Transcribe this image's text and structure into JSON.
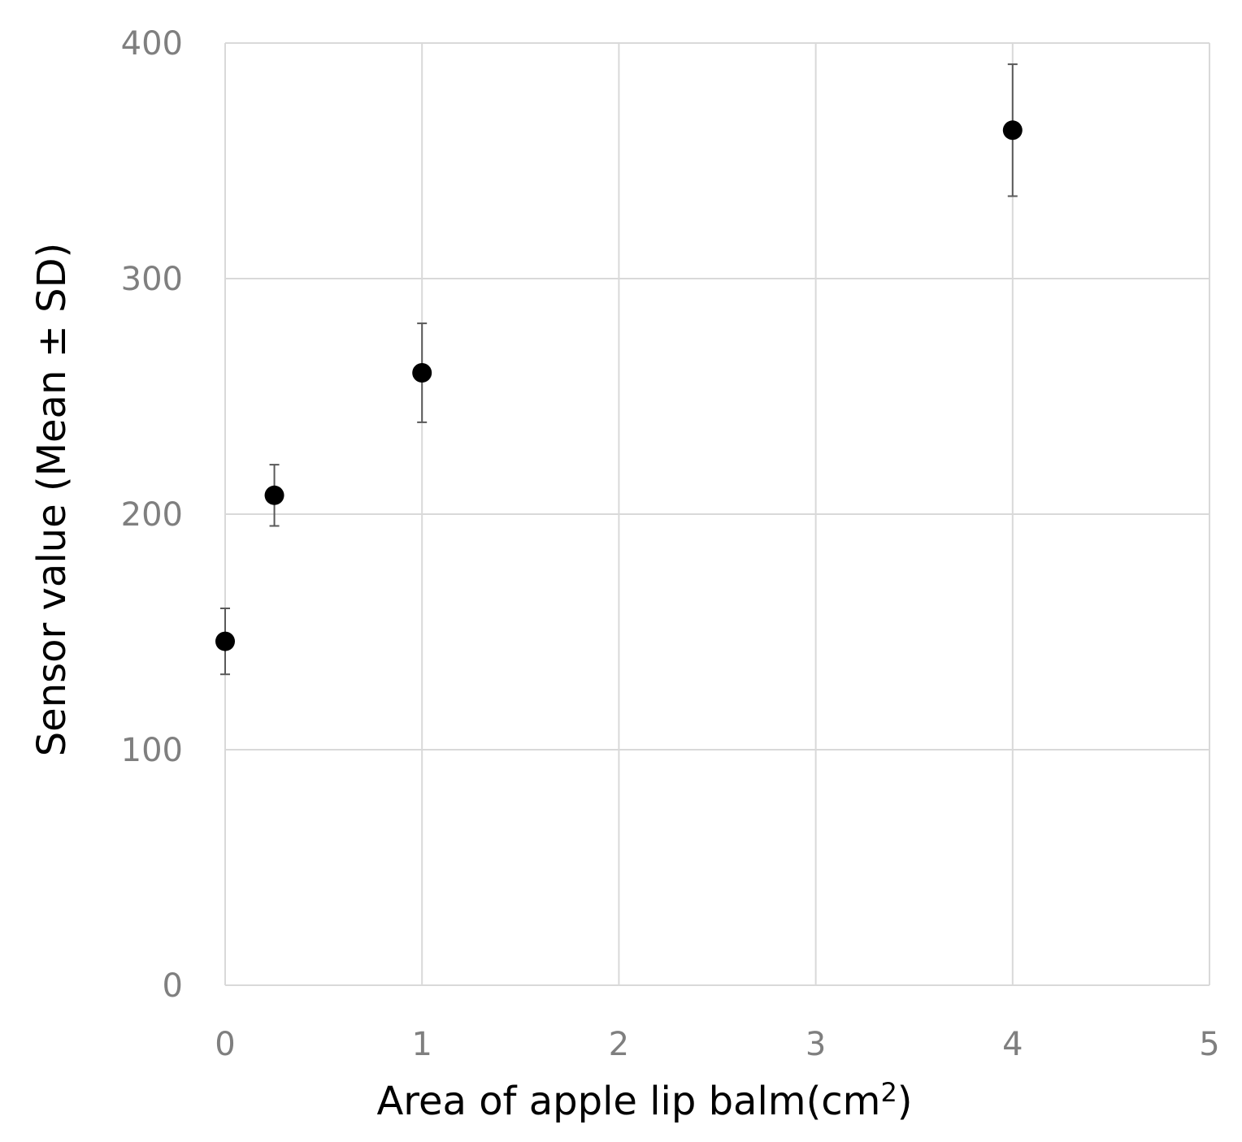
{
  "chart_data": {
    "type": "scatter",
    "title": "",
    "xlabel": "Area of apple lip balm(cm",
    "xlabel_superscript": "2",
    "xlabel_suffix": ")",
    "ylabel": "Sensor value (Mean ± SD)",
    "xlim": [
      0,
      5
    ],
    "ylim": [
      0,
      400
    ],
    "x_ticks": [
      "0",
      "1",
      "2",
      "3",
      "4",
      "5"
    ],
    "y_ticks": [
      "0",
      "100",
      "200",
      "300",
      "400"
    ],
    "grid": true,
    "legend": "none",
    "points": [
      {
        "x": 0,
        "y": 146,
        "error": 14
      },
      {
        "x": 0.25,
        "y": 208,
        "error": 13
      },
      {
        "x": 1,
        "y": 260,
        "error": 21
      },
      {
        "x": 4,
        "y": 363,
        "error": 28
      }
    ],
    "colors": {
      "marker": "#000000",
      "errorbar": "#595959",
      "grid": "#d9d9d9",
      "tick_text": "#7f7f7f"
    }
  }
}
